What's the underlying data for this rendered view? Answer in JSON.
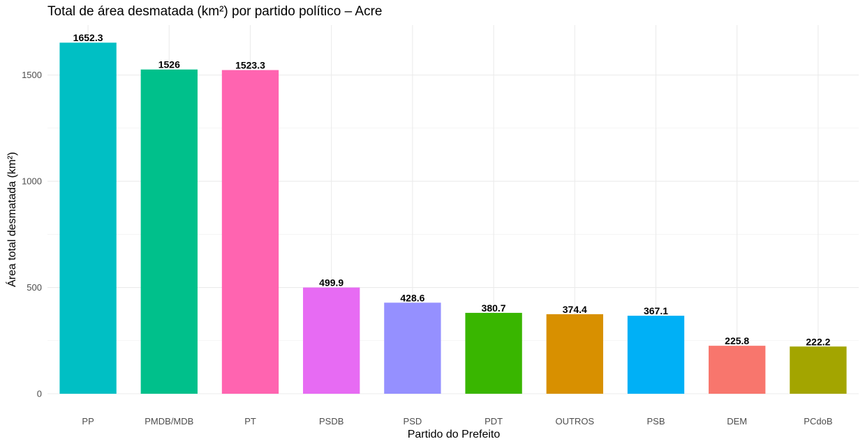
{
  "chart_data": {
    "type": "bar",
    "title": "Total de área desmatada (km²) por partido político – Acre",
    "xlabel": "Partido do Prefeito",
    "ylabel": "Área total desmatada (km²)",
    "categories": [
      "PP",
      "PMDB/MDB",
      "PT",
      "PSDB",
      "PSD",
      "PDT",
      "OUTROS",
      "PSB",
      "DEM",
      "PCdoB"
    ],
    "values": [
      1652.3,
      1526,
      1523.3,
      499.9,
      428.6,
      380.7,
      374.4,
      367.1,
      225.8,
      222.2
    ],
    "data_labels": [
      "1652.3",
      "1526",
      "1523.3",
      "499.9",
      "428.6",
      "380.7",
      "374.4",
      "367.1",
      "225.8",
      "222.2"
    ],
    "colors": [
      "#00BFC4",
      "#00C08B",
      "#FF64B0",
      "#E76BF3",
      "#9590FF",
      "#39B600",
      "#D89000",
      "#00B0F6",
      "#F8766D",
      "#A3A500"
    ],
    "y_ticks": [
      0,
      500,
      1000,
      1500
    ],
    "y_tick_labels": [
      "0",
      "500",
      "1000",
      "1500"
    ],
    "ylim": [
      0,
      1735
    ],
    "grid": true,
    "legend": "none"
  }
}
